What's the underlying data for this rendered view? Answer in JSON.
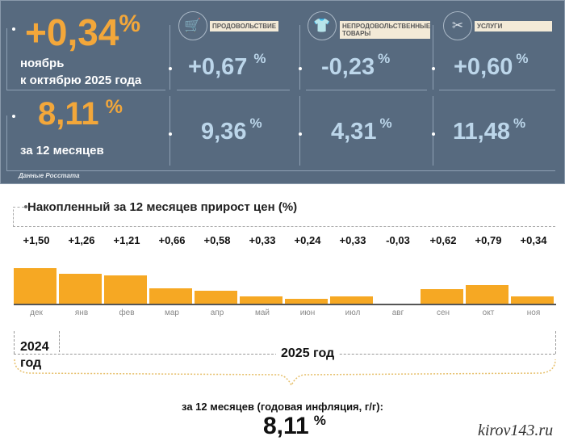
{
  "header": {
    "month_change": "+0,34",
    "month_caption_1": "ноябрь",
    "month_caption_2": "к октябрю 2025 года",
    "annual_value": "8,11",
    "annual_caption": "за 12 месяцев",
    "percent": "%",
    "source": "Данные Росстата",
    "categories": [
      {
        "label": "ПРОДОВОЛЬСТВИЕ",
        "icon": "shopping-cart-icon",
        "month": "+0,67",
        "annual": "9,36"
      },
      {
        "label": "НЕПРОДОВОЛЬСТВЕННЫЕ ТОВАРЫ",
        "icon": "clothing-icon",
        "month": "-0,23",
        "annual": "4,31"
      },
      {
        "label": "УСЛУГИ",
        "icon": "scissors-icon",
        "month": "+0,60",
        "annual": "11,48"
      }
    ]
  },
  "colors": {
    "panel": "#576a7f",
    "accent": "#f3a73a",
    "value": "#bcd6ea",
    "bar": "#f6a823"
  },
  "chart_data": {
    "type": "bar",
    "title": "Накопленный за 12 месяцев прирост цен (%)",
    "categories": [
      "дек",
      "янв",
      "фев",
      "мар",
      "апр",
      "май",
      "июн",
      "июл",
      "авг",
      "сен",
      "окт",
      "ноя"
    ],
    "values": [
      1.5,
      1.26,
      1.21,
      0.66,
      0.58,
      0.33,
      0.24,
      0.33,
      -0.03,
      0.62,
      0.79,
      0.34
    ],
    "data_labels": [
      "+1,50",
      "+1,26",
      "+1,21",
      "+0,66",
      "+0,58",
      "+0,33",
      "+0,24",
      "+0,33",
      "-0,03",
      "+0,62",
      "+0,79",
      "+0,34"
    ],
    "grid": false
  },
  "footer": {
    "year_2024_1": "2024",
    "year_2024_2": "год",
    "year_2025": "2025 год",
    "summary": "за 12 месяцев (годовая инфляция, г/г):",
    "summary_value": "8,11",
    "percent": "%",
    "watermark": "kirov143.ru"
  }
}
